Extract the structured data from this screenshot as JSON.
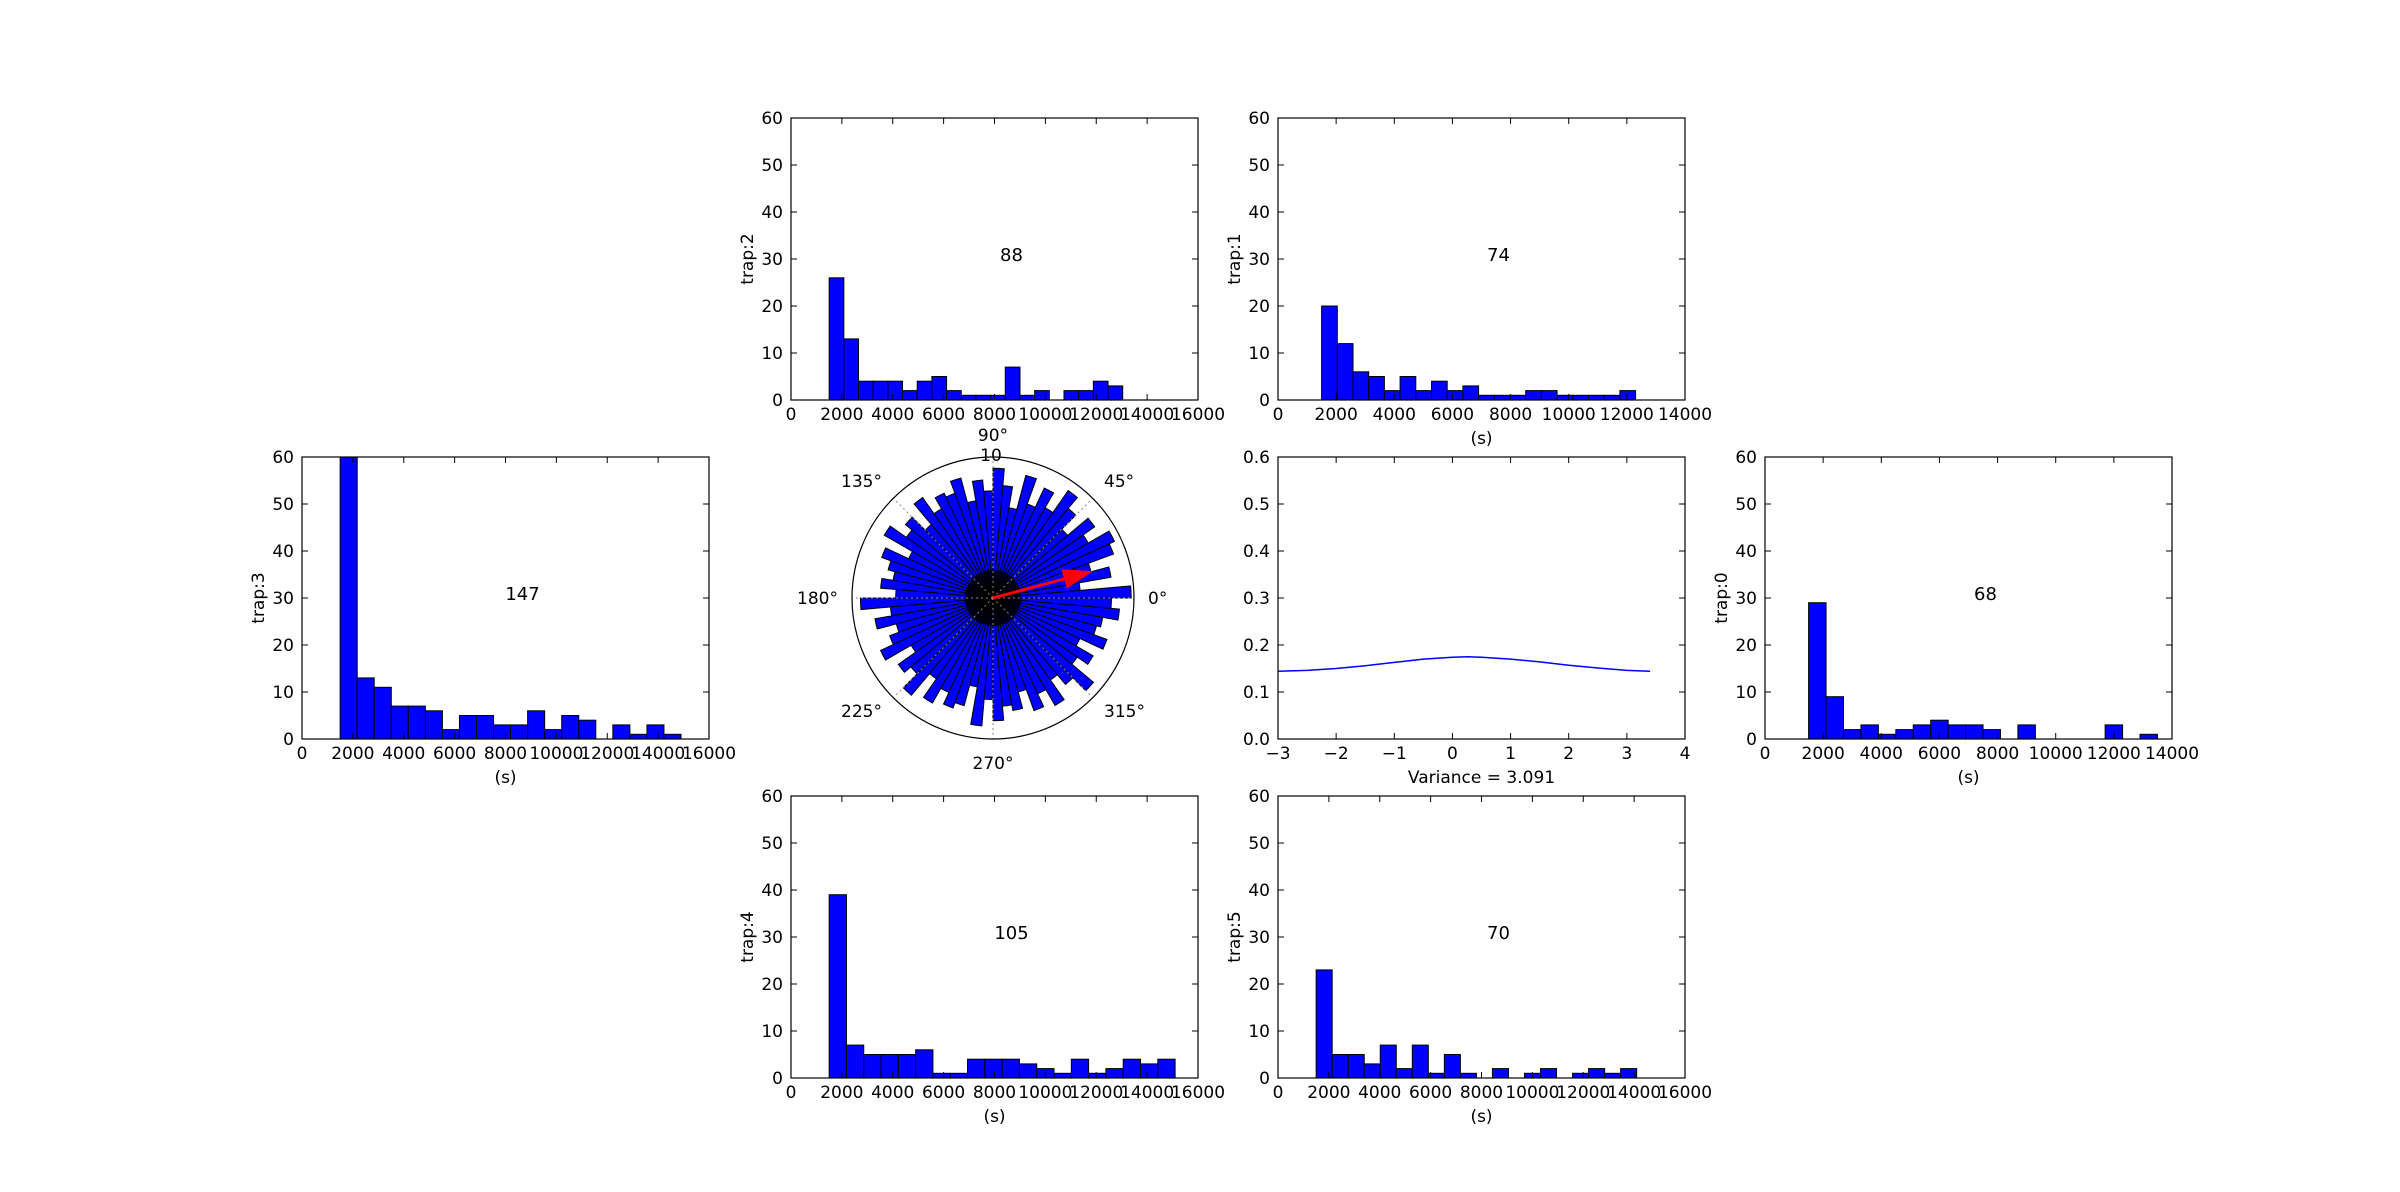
{
  "figure": {
    "background": "#ffffff",
    "bar_color": "#0000ff",
    "edge_color": "#000000",
    "arrow_color": "#ff0000",
    "line_color": "#0000ff"
  },
  "chart_data": [
    {
      "id": "trap2",
      "type": "bar",
      "ylabel": "trap:2",
      "xlabel": "",
      "annotation": "88",
      "xlim": [
        0,
        16000
      ],
      "ylim": [
        0,
        60
      ],
      "xticks": [
        0,
        2000,
        4000,
        6000,
        8000,
        10000,
        12000,
        14000,
        16000
      ],
      "yticks": [
        0,
        10,
        20,
        30,
        40,
        50,
        60
      ],
      "bin_start": 1500,
      "bin_width": 577,
      "values": [
        26,
        13,
        4,
        4,
        4,
        2,
        4,
        5,
        2,
        1,
        1,
        1,
        7,
        1,
        2,
        0,
        2,
        2,
        4,
        3
      ]
    },
    {
      "id": "trap1",
      "type": "bar",
      "ylabel": "trap:1",
      "xlabel": "(s)",
      "annotation": "74",
      "xlim": [
        0,
        14000
      ],
      "ylim": [
        0,
        60
      ],
      "xticks": [
        0,
        2000,
        4000,
        6000,
        8000,
        10000,
        12000,
        14000
      ],
      "yticks": [
        0,
        10,
        20,
        30,
        40,
        50,
        60
      ],
      "bin_start": 1500,
      "bin_width": 540,
      "values": [
        20,
        12,
        6,
        5,
        2,
        5,
        2,
        4,
        2,
        3,
        1,
        1,
        1,
        2,
        2,
        1,
        1,
        1,
        1,
        2
      ]
    },
    {
      "id": "trap3",
      "type": "bar",
      "ylabel": "trap:3",
      "xlabel": "(s)",
      "annotation": "147",
      "xlim": [
        0,
        16000
      ],
      "ylim": [
        0,
        60
      ],
      "xticks": [
        0,
        2000,
        4000,
        6000,
        8000,
        10000,
        12000,
        14000,
        16000
      ],
      "yticks": [
        0,
        10,
        20,
        30,
        40,
        50,
        60
      ],
      "bin_start": 1500,
      "bin_width": 670,
      "values": [
        60,
        13,
        11,
        7,
        7,
        6,
        2,
        5,
        5,
        3,
        3,
        6,
        2,
        5,
        4,
        0,
        3,
        1,
        3,
        1
      ]
    },
    {
      "id": "trap0",
      "type": "bar",
      "ylabel": "trap:0",
      "xlabel": "(s)",
      "annotation": "68",
      "xlim": [
        0,
        14000
      ],
      "ylim": [
        0,
        60
      ],
      "xticks": [
        0,
        2000,
        4000,
        6000,
        8000,
        10000,
        12000,
        14000
      ],
      "yticks": [
        0,
        10,
        20,
        30,
        40,
        50,
        60
      ],
      "bin_start": 1500,
      "bin_width": 600,
      "values": [
        29,
        9,
        2,
        3,
        1,
        2,
        3,
        4,
        3,
        3,
        2,
        0,
        3,
        0,
        0,
        0,
        0,
        3,
        0,
        1
      ]
    },
    {
      "id": "trap4",
      "type": "bar",
      "ylabel": "trap:4",
      "xlabel": "(s)",
      "annotation": "105",
      "xlim": [
        0,
        16000
      ],
      "ylim": [
        0,
        60
      ],
      "xticks": [
        0,
        2000,
        4000,
        6000,
        8000,
        10000,
        12000,
        14000,
        16000
      ],
      "yticks": [
        0,
        10,
        20,
        30,
        40,
        50,
        60
      ],
      "bin_start": 1500,
      "bin_width": 680,
      "values": [
        39,
        7,
        5,
        5,
        5,
        6,
        1,
        1,
        4,
        4,
        4,
        3,
        2,
        1,
        4,
        1,
        2,
        4,
        3,
        4
      ]
    },
    {
      "id": "trap5",
      "type": "bar",
      "ylabel": "trap:5",
      "xlabel": "(s)",
      "annotation": "70",
      "xlim": [
        0,
        16000
      ],
      "ylim": [
        0,
        60
      ],
      "xticks": [
        0,
        2000,
        4000,
        6000,
        8000,
        10000,
        12000,
        14000,
        16000
      ],
      "yticks": [
        0,
        10,
        20,
        30,
        40,
        50,
        60
      ],
      "bin_start": 1500,
      "bin_width": 630,
      "values": [
        23,
        5,
        5,
        3,
        7,
        2,
        7,
        1,
        5,
        1,
        0,
        2,
        0,
        1,
        2,
        0,
        1,
        2,
        1,
        2
      ]
    },
    {
      "id": "polar",
      "type": "polar-bar",
      "angle_ticks": [
        "0°",
        "45°",
        "90°",
        "135°",
        "180°",
        "225°",
        "270°",
        "315°"
      ],
      "radial_tick": "10",
      "rmax": 1.0,
      "bin_count": 72,
      "radii": [
        0.98,
        0.62,
        0.85,
        0.72,
        0.91,
        0.95,
        0.78,
        0.88,
        0.69,
        0.83,
        0.93,
        0.74,
        0.86,
        0.71,
        0.9,
        0.65,
        0.8,
        0.92,
        0.76,
        0.84,
        0.7,
        0.88,
        0.79,
        0.82,
        0.73,
        0.87,
        0.68,
        0.81,
        0.75,
        0.89,
        0.66,
        0.84,
        0.77,
        0.72,
        0.8,
        0.69,
        0.94,
        0.73,
        0.85,
        0.71,
        0.78,
        0.88,
        0.67,
        0.82,
        0.76,
        0.9,
        0.7,
        0.86,
        0.74,
        0.83,
        0.79,
        0.64,
        0.91,
        0.72,
        0.87,
        0.77,
        0.81,
        0.69,
        0.85,
        0.75,
        0.88,
        0.71,
        0.8,
        0.93,
        0.73,
        0.82,
        0.68,
        0.86,
        0.76,
        0.79,
        0.9,
        0.84
      ],
      "mean_direction_deg": 15,
      "mean_vector_length": 0.72
    },
    {
      "id": "density",
      "type": "line",
      "xlabel": "Variance = 3.091",
      "xlim": [
        -3,
        4
      ],
      "ylim": [
        0,
        0.6
      ],
      "xticks": [
        -3,
        -2,
        -1,
        0,
        1,
        2,
        3,
        4
      ],
      "ytick_labels": [
        "0.0",
        "0.1",
        "0.2",
        "0.3",
        "0.4",
        "0.5",
        "0.6"
      ],
      "x": [
        -3.0,
        -2.5,
        -2.0,
        -1.5,
        -1.0,
        -0.5,
        0.0,
        0.26,
        0.5,
        1.0,
        1.5,
        2.0,
        2.5,
        3.0,
        3.4
      ],
      "y": [
        0.144,
        0.146,
        0.15,
        0.156,
        0.163,
        0.17,
        0.174,
        0.175,
        0.174,
        0.17,
        0.164,
        0.157,
        0.151,
        0.146,
        0.144
      ]
    }
  ]
}
